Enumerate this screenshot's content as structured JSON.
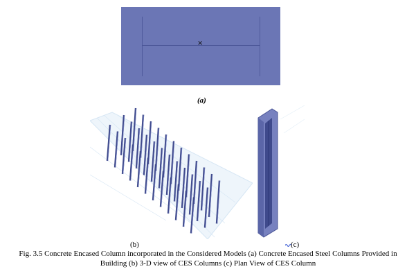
{
  "figure": {
    "label_a": "(a)",
    "label_b": "(b)",
    "label_c": "(c)",
    "center_mark": "×",
    "caption_line1": "Fig. 3.5 Concrete Encased Column incorporated in the Considered Models (a) Concrete Encased Steel Columns Provided in",
    "caption_line2": "Building (b) 3-D view of CES Columns (c) Plan View of CES Column"
  },
  "colors": {
    "column_fill": "#6b76b5",
    "steel_lines": "#4a5596",
    "column_3d": "#3f4a8c",
    "column_3d_highlight": "#8c96cf",
    "grid": "#d6e6f4"
  },
  "icons": {
    "center": "cross-mark-icon",
    "spellcheck": "squiggle-icon"
  }
}
